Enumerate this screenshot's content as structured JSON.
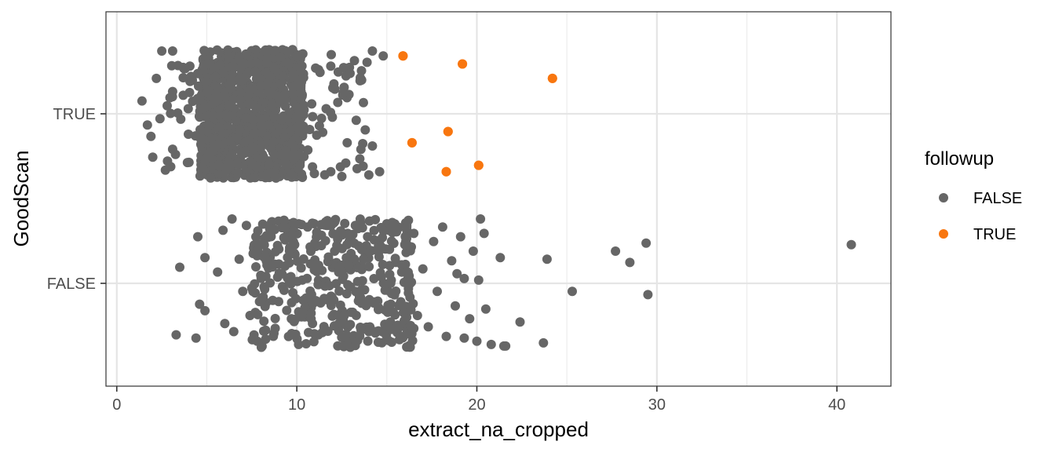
{
  "chart_data": {
    "type": "scatter",
    "title": "",
    "xlabel": "extract_na_cropped",
    "ylabel": "GoodScan",
    "xlim": [
      -0.6,
      43
    ],
    "x_ticks": [
      0,
      10,
      20,
      30,
      40
    ],
    "x_tick_labels": [
      "0",
      "10",
      "20",
      "30",
      "40"
    ],
    "y_categories": [
      "FALSE",
      "TRUE"
    ],
    "grid": true,
    "jitter": true,
    "legend": {
      "title": "followup",
      "position": "right",
      "entries": [
        {
          "label": "FALSE",
          "color": "#666666"
        },
        {
          "label": "TRUE",
          "color": "#f8760f"
        }
      ]
    },
    "series": [
      {
        "name": "FALSE",
        "color": "#666666",
        "groups": [
          {
            "y": "TRUE",
            "points": [
              {
                "x": 1.4,
                "y": 0.08
              },
              {
                "x": 1.7,
                "y": -0.07
              },
              {
                "x": 1.9,
                "y": -0.14
              },
              {
                "x": 2.0,
                "y": -0.27
              },
              {
                "x": 2.2,
                "y": 0.22
              },
              {
                "x": 2.5,
                "y": 0.39
              },
              {
                "x": 2.7,
                "y": -0.35
              },
              {
                "x": 2.4,
                "y": -0.03
              },
              {
                "x": 3.1,
                "y": 0.39
              },
              {
                "x": 3.4,
                "y": 0.3
              },
              {
                "x": 3.1,
                "y": -0.22
              },
              {
                "x": 2.8,
                "y": 0.05
              },
              {
                "x": 14.2,
                "y": 0.39
              },
              {
                "x": 14.8,
                "y": 0.36
              },
              {
                "x": 14.6,
                "y": -0.36
              },
              {
                "x": 14.0,
                "y": -0.38
              },
              {
                "x": 13.9,
                "y": 0.32
              },
              {
                "x": 14.2,
                "y": -0.2
              },
              {
                "x": 13.7,
                "y": 0.07
              },
              {
                "x": 13.8,
                "y": -0.1
              },
              {
                "x": 13.6,
                "y": 0.21
              },
              {
                "x": 13.5,
                "y": -0.28
              },
              {
                "x": 13.2,
                "y": 0.33
              },
              {
                "x": 12.9,
                "y": 0.12
              },
              {
                "x": 12.8,
                "y": -0.18
              },
              {
                "x": 13.3,
                "y": -0.04
              },
              {
                "x": 12.5,
                "y": -0.39
              },
              {
                "x": 12.3,
                "y": 0.26
              }
            ]
          },
          {
            "y": "FALSE",
            "points": [
              {
                "x": 3.3,
                "y": -0.32
              },
              {
                "x": 3.5,
                "y": 0.1
              },
              {
                "x": 4.4,
                "y": -0.34
              },
              {
                "x": 4.5,
                "y": 0.29
              },
              {
                "x": 4.6,
                "y": -0.13
              },
              {
                "x": 4.9,
                "y": 0.16
              },
              {
                "x": 4.9,
                "y": -0.17
              },
              {
                "x": 5.6,
                "y": 0.07
              },
              {
                "x": 5.9,
                "y": 0.33
              },
              {
                "x": 6.0,
                "y": -0.25
              },
              {
                "x": 6.4,
                "y": 0.4
              },
              {
                "x": 6.5,
                "y": -0.3
              },
              {
                "x": 6.8,
                "y": 0.15
              },
              {
                "x": 7.0,
                "y": -0.05
              },
              {
                "x": 7.2,
                "y": 0.36
              },
              {
                "x": 7.4,
                "y": -0.2
              },
              {
                "x": 7.6,
                "y": 0.22
              },
              {
                "x": 7.8,
                "y": -0.36
              },
              {
                "x": 8.0,
                "y": 0.05
              },
              {
                "x": 8.2,
                "y": 0.28
              },
              {
                "x": 8.3,
                "y": -0.12
              },
              {
                "x": 8.6,
                "y": 0.38
              },
              {
                "x": 8.8,
                "y": -0.28
              },
              {
                "x": 9.0,
                "y": 0.12
              },
              {
                "x": 9.2,
                "y": -0.02
              },
              {
                "x": 9.5,
                "y": 0.32
              },
              {
                "x": 9.7,
                "y": -0.22
              },
              {
                "x": 9.9,
                "y": 0.18
              },
              {
                "x": 10.1,
                "y": -0.38
              },
              {
                "x": 10.3,
                "y": 0.02
              },
              {
                "x": 10.6,
                "y": 0.35
              },
              {
                "x": 10.8,
                "y": -0.15
              },
              {
                "x": 11.0,
                "y": 0.25
              },
              {
                "x": 11.2,
                "y": -0.32
              },
              {
                "x": 11.4,
                "y": 0.08
              },
              {
                "x": 11.7,
                "y": 0.39
              },
              {
                "x": 11.9,
                "y": -0.08
              },
              {
                "x": 12.1,
                "y": 0.2
              },
              {
                "x": 12.3,
                "y": -0.26
              },
              {
                "x": 12.5,
                "y": 0.3
              },
              {
                "x": 12.7,
                "y": -0.37
              },
              {
                "x": 12.9,
                "y": 0.1
              },
              {
                "x": 13.1,
                "y": -0.18
              },
              {
                "x": 13.4,
                "y": 0.34
              },
              {
                "x": 13.6,
                "y": -0.04
              },
              {
                "x": 13.8,
                "y": 0.17
              },
              {
                "x": 14.0,
                "y": -0.3
              },
              {
                "x": 14.3,
                "y": 0.27
              },
              {
                "x": 14.5,
                "y": -0.11
              },
              {
                "x": 14.7,
                "y": 0.04
              },
              {
                "x": 15.0,
                "y": 0.37
              },
              {
                "x": 15.2,
                "y": -0.24
              },
              {
                "x": 15.5,
                "y": 0.13
              },
              {
                "x": 15.7,
                "y": -0.35
              },
              {
                "x": 16.0,
                "y": 0.24
              },
              {
                "x": 16.2,
                "y": -0.06
              },
              {
                "x": 16.5,
                "y": 0.31
              },
              {
                "x": 16.7,
                "y": -0.2
              },
              {
                "x": 17.0,
                "y": 0.09
              },
              {
                "x": 17.3,
                "y": -0.27
              },
              {
                "x": 17.6,
                "y": 0.26
              },
              {
                "x": 17.8,
                "y": -0.05
              },
              {
                "x": 18.1,
                "y": 0.35
              },
              {
                "x": 18.3,
                "y": -0.33
              },
              {
                "x": 18.6,
                "y": 0.14
              },
              {
                "x": 18.8,
                "y": -0.14
              },
              {
                "x": 19.1,
                "y": 0.29
              },
              {
                "x": 19.3,
                "y": 0.03
              },
              {
                "x": 19.6,
                "y": -0.22
              },
              {
                "x": 19.8,
                "y": 0.2
              },
              {
                "x": 20.0,
                "y": -0.36
              },
              {
                "x": 20.2,
                "y": 0.4
              },
              {
                "x": 20.1,
                "y": 0.02
              },
              {
                "x": 20.5,
                "y": -0.16
              },
              {
                "x": 20.4,
                "y": 0.31
              },
              {
                "x": 21.3,
                "y": 0.16
              },
              {
                "x": 21.5,
                "y": -0.39
              },
              {
                "x": 21.6,
                "y": -0.39
              },
              {
                "x": 22.4,
                "y": -0.24
              },
              {
                "x": 23.7,
                "y": -0.37
              },
              {
                "x": 23.9,
                "y": 0.15
              },
              {
                "x": 25.3,
                "y": -0.05
              },
              {
                "x": 27.7,
                "y": 0.2
              },
              {
                "x": 28.5,
                "y": 0.13
              },
              {
                "x": 29.4,
                "y": 0.25
              },
              {
                "x": 29.5,
                "y": -0.07
              },
              {
                "x": 40.8,
                "y": 0.24
              },
              {
                "x": 20.8,
                "y": -0.38
              },
              {
                "x": 19.3,
                "y": -0.34
              },
              {
                "x": 18.9,
                "y": 0.06
              }
            ]
          }
        ]
      },
      {
        "name": "TRUE",
        "color": "#f8760f",
        "groups": [
          {
            "y": "TRUE",
            "points": [
              {
                "x": 15.9,
                "y": 0.36
              },
              {
                "x": 19.2,
                "y": 0.31
              },
              {
                "x": 24.2,
                "y": 0.22
              },
              {
                "x": 18.4,
                "y": -0.11
              },
              {
                "x": 16.4,
                "y": -0.18
              },
              {
                "x": 20.1,
                "y": -0.32
              },
              {
                "x": 18.3,
                "y": -0.36
              }
            ]
          }
        ]
      }
    ]
  }
}
